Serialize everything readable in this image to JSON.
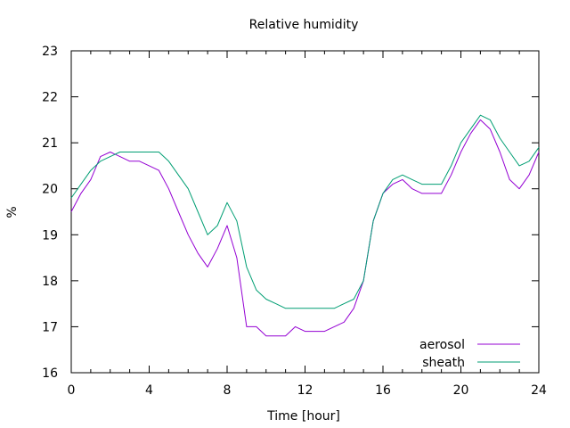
{
  "chart_data": {
    "type": "line",
    "title": "Relative humidity",
    "xlabel": "Time [hour]",
    "ylabel": "%",
    "xlim": [
      0,
      24
    ],
    "ylim": [
      16,
      23
    ],
    "x_ticks": [
      0,
      4,
      8,
      12,
      16,
      20,
      24
    ],
    "y_ticks": [
      16,
      17,
      18,
      19,
      20,
      21,
      22,
      23
    ],
    "grid": false,
    "legend": "bottom-right",
    "series": [
      {
        "name": "aerosol",
        "color": "#9400d3",
        "x": [
          0,
          0.5,
          1,
          1.5,
          2,
          2.5,
          3,
          3.5,
          4,
          4.5,
          5,
          5.5,
          6,
          6.5,
          7,
          7.5,
          8,
          8.5,
          9,
          9.5,
          10,
          10.5,
          11,
          11.5,
          12,
          12.5,
          13,
          13.5,
          14,
          14.5,
          15,
          15.5,
          16,
          16.5,
          17,
          17.5,
          18,
          18.5,
          19,
          19.5,
          20,
          20.5,
          21,
          21.5,
          22,
          22.5,
          23,
          23.5,
          24
        ],
        "y": [
          19.5,
          19.9,
          20.2,
          20.7,
          20.8,
          20.7,
          20.6,
          20.6,
          20.5,
          20.4,
          20.0,
          19.5,
          19.0,
          18.6,
          18.3,
          18.7,
          19.2,
          18.5,
          17.0,
          17.0,
          16.8,
          16.8,
          16.8,
          17.0,
          16.9,
          16.9,
          16.9,
          17.0,
          17.1,
          17.4,
          18.0,
          19.3,
          19.9,
          20.1,
          20.2,
          20.0,
          19.9,
          19.9,
          19.9,
          20.3,
          20.8,
          21.2,
          21.5,
          21.3,
          20.8,
          20.2,
          20.0,
          20.3,
          20.8
        ]
      },
      {
        "name": "sheath",
        "color": "#009e73",
        "x": [
          0,
          0.5,
          1,
          1.5,
          2,
          2.5,
          3,
          3.5,
          4,
          4.5,
          5,
          5.5,
          6,
          6.5,
          7,
          7.5,
          8,
          8.5,
          9,
          9.5,
          10,
          10.5,
          11,
          11.5,
          12,
          12.5,
          13,
          13.5,
          14,
          14.5,
          15,
          15.5,
          16,
          16.5,
          17,
          17.5,
          18,
          18.5,
          19,
          19.5,
          20,
          20.5,
          21,
          21.5,
          22,
          22.5,
          23,
          23.5,
          24
        ],
        "y": [
          19.8,
          20.1,
          20.4,
          20.6,
          20.7,
          20.8,
          20.8,
          20.8,
          20.8,
          20.8,
          20.6,
          20.3,
          20.0,
          19.5,
          19.0,
          19.2,
          19.7,
          19.3,
          18.3,
          17.8,
          17.6,
          17.5,
          17.4,
          17.4,
          17.4,
          17.4,
          17.4,
          17.4,
          17.5,
          17.6,
          18.0,
          19.3,
          19.9,
          20.2,
          20.3,
          20.2,
          20.1,
          20.1,
          20.1,
          20.5,
          21.0,
          21.3,
          21.6,
          21.5,
          21.1,
          20.8,
          20.5,
          20.6,
          20.9
        ]
      }
    ]
  }
}
